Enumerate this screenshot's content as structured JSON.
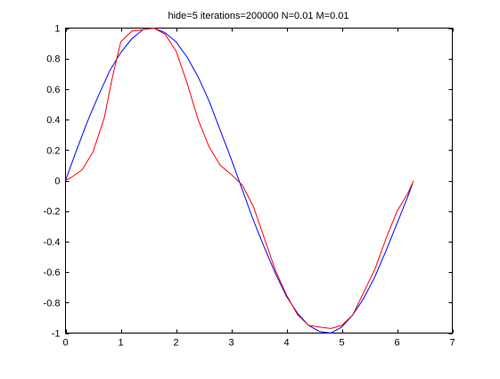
{
  "chart_data": {
    "type": "line",
    "title": "hide=5 iterations=200000 N=0.01 M=0.01",
    "xlabel": "",
    "ylabel": "",
    "xlim": [
      0,
      7
    ],
    "ylim": [
      -1,
      1
    ],
    "xticks": [
      0,
      1,
      2,
      3,
      4,
      5,
      6,
      7
    ],
    "xtick_labels": [
      "0",
      "1",
      "2",
      "3",
      "4",
      "5",
      "6",
      "7"
    ],
    "yticks": [
      -1,
      -0.8,
      -0.6,
      -0.4,
      -0.2,
      0,
      0.2,
      0.4,
      0.6,
      0.8,
      1
    ],
    "ytick_labels": [
      "-1",
      "-0.8",
      "-0.6",
      "-0.4",
      "-0.2",
      "0",
      "0.2",
      "0.4",
      "0.6",
      "0.8",
      "1"
    ],
    "grid": false,
    "legend": false,
    "series": [
      {
        "color": "#0000ff",
        "x": [
          0,
          0.2,
          0.4,
          0.6,
          0.8,
          1.0,
          1.2,
          1.4,
          1.6,
          1.8,
          2.0,
          2.2,
          2.4,
          2.6,
          2.8,
          3.0,
          3.2,
          3.4,
          3.6,
          3.8,
          4.0,
          4.2,
          4.4,
          4.6,
          4.8,
          5.0,
          5.2,
          5.4,
          5.6,
          5.8,
          6.0,
          6.2,
          6.28
        ],
        "y": [
          0,
          0.2,
          0.39,
          0.56,
          0.72,
          0.84,
          0.93,
          0.99,
          1.0,
          0.97,
          0.91,
          0.81,
          0.68,
          0.52,
          0.33,
          0.14,
          -0.06,
          -0.26,
          -0.44,
          -0.61,
          -0.76,
          -0.87,
          -0.95,
          -0.99,
          -1.0,
          -0.96,
          -0.88,
          -0.77,
          -0.63,
          -0.46,
          -0.28,
          -0.1,
          -0.02
        ]
      },
      {
        "color": "#ff0000",
        "x": [
          0,
          0.1,
          0.3,
          0.5,
          0.7,
          0.85,
          1.0,
          1.2,
          1.4,
          1.6,
          1.8,
          2.0,
          2.2,
          2.4,
          2.6,
          2.8,
          3.0,
          3.2,
          3.4,
          3.6,
          3.8,
          4.0,
          4.2,
          4.4,
          4.6,
          4.8,
          5.0,
          5.2,
          5.4,
          5.6,
          5.8,
          6.0,
          6.2,
          6.3
        ],
        "y": [
          0,
          0.02,
          0.07,
          0.19,
          0.41,
          0.68,
          0.91,
          0.98,
          0.99,
          1.0,
          0.96,
          0.85,
          0.64,
          0.4,
          0.22,
          0.1,
          0.04,
          -0.03,
          -0.17,
          -0.38,
          -0.59,
          -0.75,
          -0.88,
          -0.95,
          -0.96,
          -0.97,
          -0.95,
          -0.88,
          -0.73,
          -0.58,
          -0.38,
          -0.2,
          -0.08,
          0
        ]
      }
    ]
  }
}
